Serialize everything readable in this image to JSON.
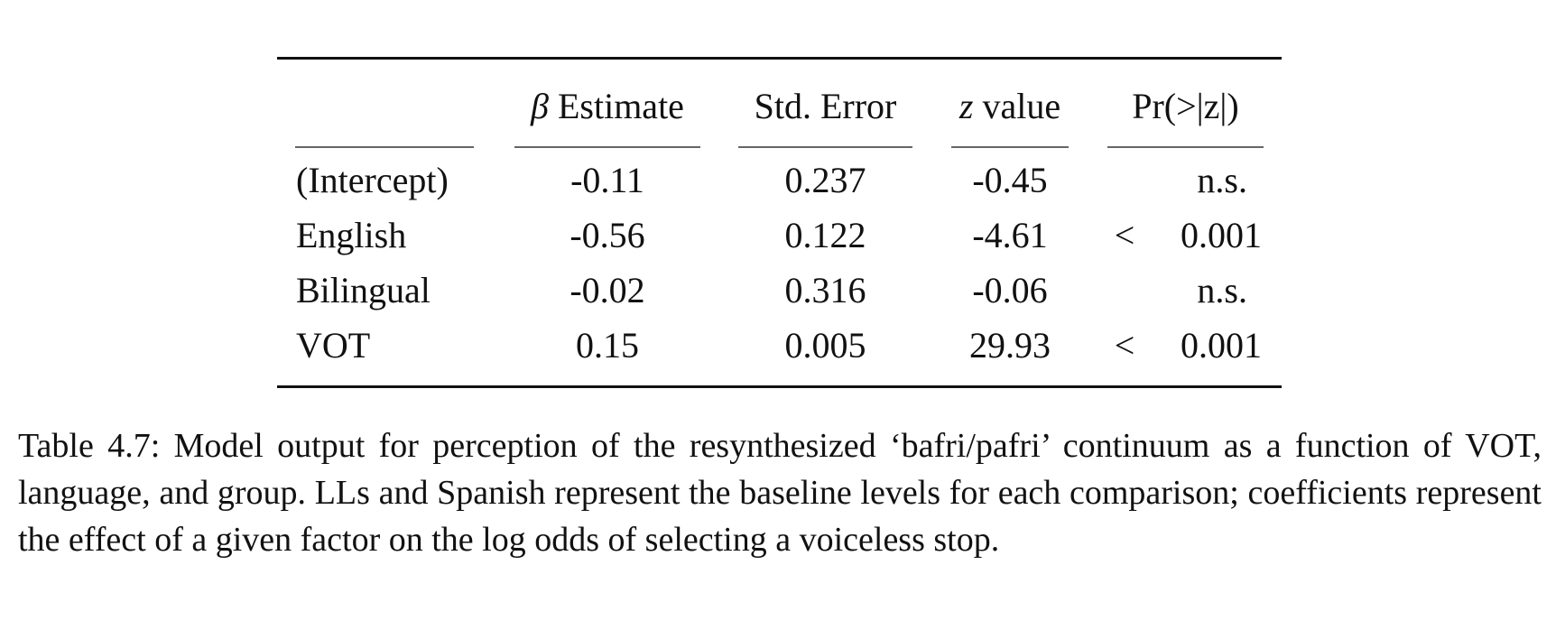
{
  "table": {
    "header": {
      "estimate_symbol": "β",
      "estimate_label": " Estimate",
      "std_error": "Std. Error",
      "z_symbol": "z",
      "z_label": " value",
      "p_value": "Pr(>|z|)"
    },
    "rows": [
      {
        "label": "(Intercept)",
        "estimate": "-0.11",
        "std_error": "0.237",
        "z_value": "-0.45",
        "p_sign": "",
        "p_value": "n.s."
      },
      {
        "label": "English",
        "estimate": "-0.56",
        "std_error": "0.122",
        "z_value": "-4.61",
        "p_sign": "<",
        "p_value": "0.001"
      },
      {
        "label": "Bilingual",
        "estimate": "-0.02",
        "std_error": "0.316",
        "z_value": "-0.06",
        "p_sign": "",
        "p_value": "n.s."
      },
      {
        "label": "VOT",
        "estimate": "0.15",
        "std_error": "0.005",
        "z_value": "29.93",
        "p_sign": "<",
        "p_value": "0.001"
      }
    ]
  },
  "caption": "Table 4.7: Model output for perception of the resynthesized ‘bafri/pafri’ continuum as a function of VOT, language, and group. LLs and Spanish represent the baseline levels for each comparison; coefficients represent the effect of a given factor on the log odds of selecting a voiceless stop."
}
